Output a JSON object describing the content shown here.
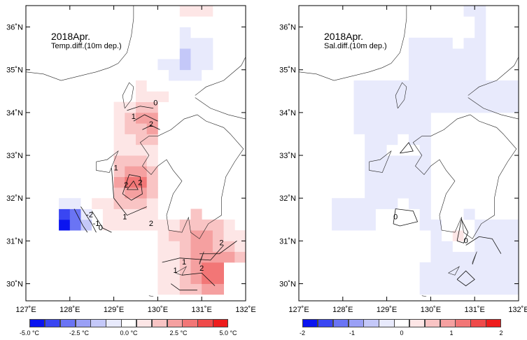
{
  "panels": [
    {
      "id": "temperature",
      "title": "2018Apr.",
      "subtitle": "Temp.diff.(10m dep.)",
      "contour_labels": [
        "0",
        "1",
        "2",
        "-1",
        "-2"
      ],
      "colorbar": {
        "tick_labels": [
          "-5.0 °C",
          "-2.5 °C",
          "0.0 °C",
          "2.5 °C",
          "5.0 °C"
        ],
        "ticks": [
          -5.0,
          -2.5,
          0.0,
          2.5,
          5.0
        ],
        "range": [
          -5,
          5
        ],
        "colors": [
          "#0a14f0",
          "#3a46f2",
          "#6a74f4",
          "#9aa0f6",
          "#c4c8f9",
          "#e8eafc",
          "#ffffff",
          "#fde6e6",
          "#f9c4c4",
          "#f5a0a0",
          "#f27676",
          "#ef4a4a",
          "#ee1c1c"
        ]
      }
    },
    {
      "id": "salinity",
      "title": "2018Apr.",
      "subtitle": "Sal.diff.(10m dep.)",
      "contour_labels": [
        "0"
      ],
      "colorbar": {
        "tick_labels": [
          "-2",
          "-1",
          "0",
          "1",
          "2"
        ],
        "ticks": [
          -2,
          -1,
          0,
          1,
          2
        ],
        "range": [
          -2,
          2
        ],
        "colors": [
          "#0a14f0",
          "#3a46f2",
          "#6a74f4",
          "#9aa0f6",
          "#c4c8f9",
          "#e8eafc",
          "#ffffff",
          "#fde6e6",
          "#f9c4c4",
          "#f5a0a0",
          "#f27676",
          "#ef4a4a",
          "#ee1c1c"
        ]
      }
    }
  ],
  "axes": {
    "x_ticks": [
      127,
      128,
      129,
      130,
      131,
      132
    ],
    "y_ticks": [
      30,
      31,
      32,
      33,
      34,
      35,
      36
    ],
    "x_labels": [
      "127˚E",
      "128˚E",
      "129˚E",
      "130˚E",
      "131˚E",
      "132˚E"
    ],
    "y_labels": [
      "30˚N",
      "31˚N",
      "32˚N",
      "33˚N",
      "34˚N",
      "35˚N",
      "36˚N"
    ],
    "lon_range": [
      127,
      132
    ],
    "lat_range": [
      29.6,
      36.5
    ]
  }
}
